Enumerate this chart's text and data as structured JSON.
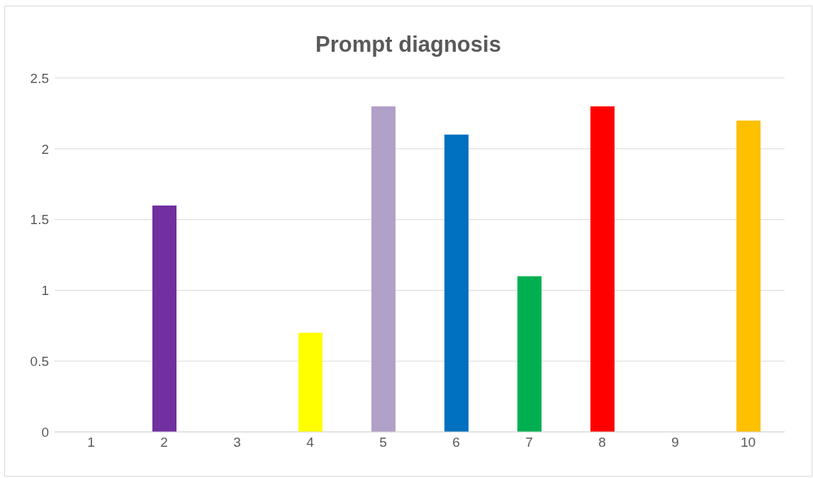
{
  "chart_data": {
    "type": "bar",
    "title": "Prompt diagnosis",
    "categories": [
      "1",
      "2",
      "3",
      "4",
      "5",
      "6",
      "7",
      "8",
      "9",
      "10"
    ],
    "values": [
      0,
      1.6,
      0,
      0.7,
      2.3,
      2.1,
      1.1,
      2.3,
      0,
      2.2
    ],
    "colors": [
      null,
      "#7030a0",
      null,
      "#ffff00",
      "#b1a0c7",
      "#0070c0",
      "#00b050",
      "#ff0000",
      null,
      "#ffc000"
    ],
    "ylim": [
      0,
      2.5
    ],
    "yticks": [
      0,
      0.5,
      1,
      1.5,
      2,
      2.5
    ],
    "grid": "y"
  }
}
